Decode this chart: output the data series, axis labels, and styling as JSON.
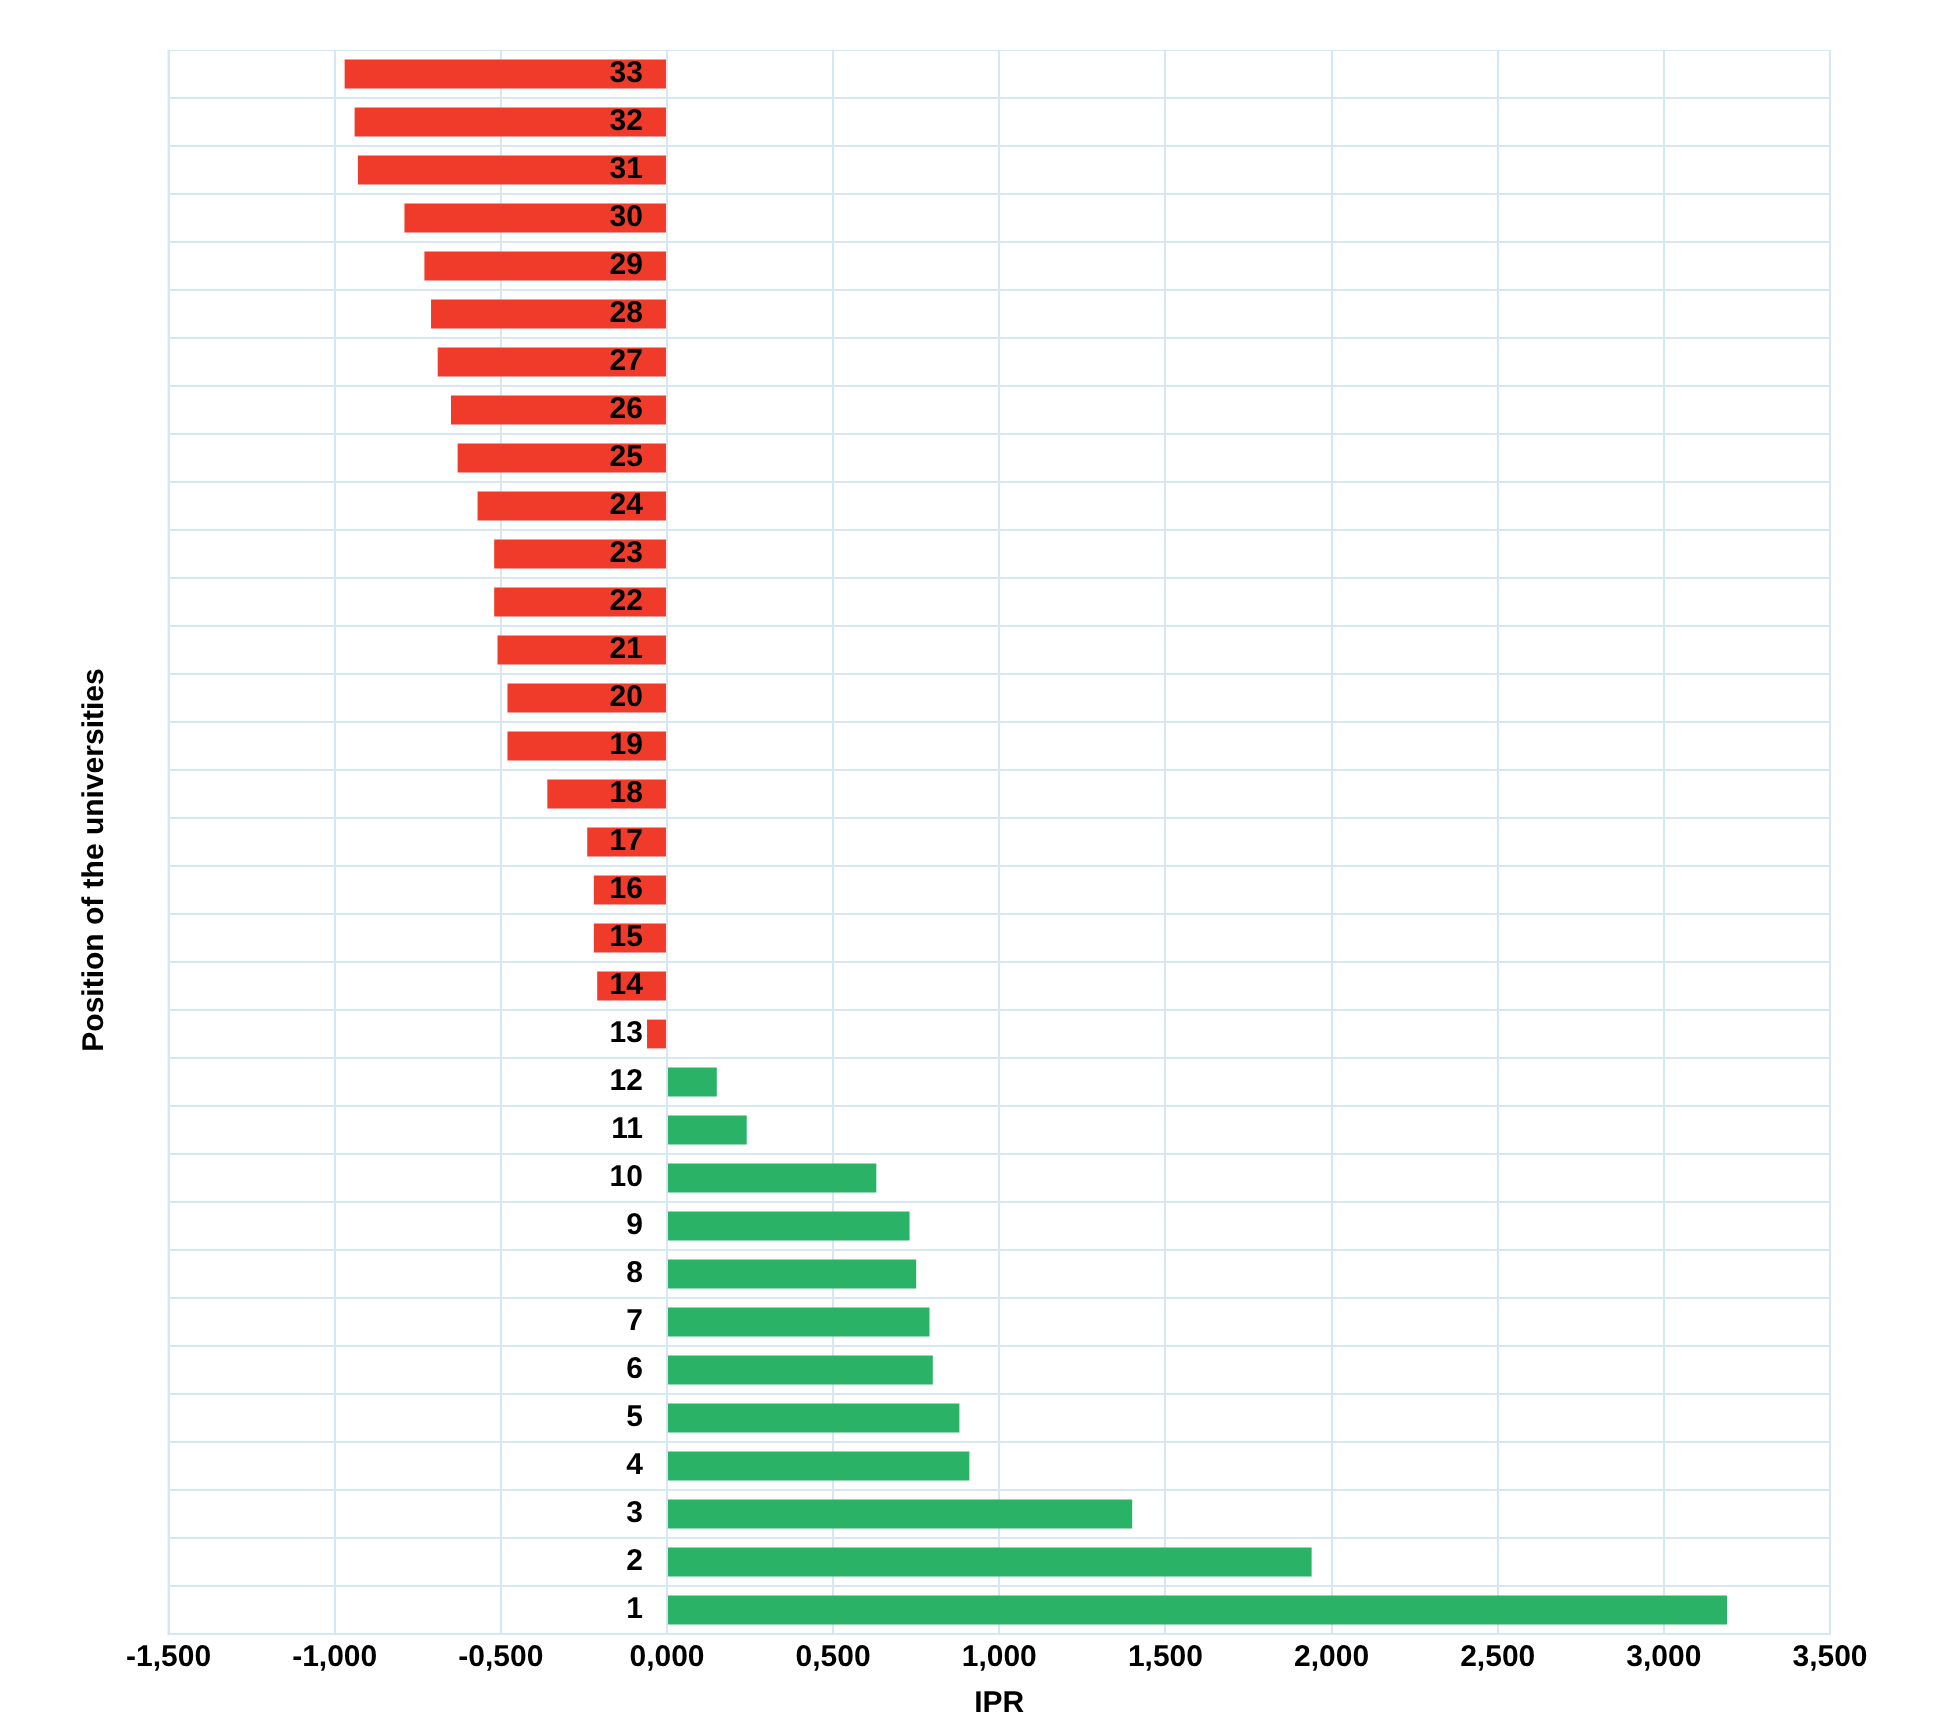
{
  "chart_data": {
    "type": "bar",
    "orientation": "horizontal",
    "xlabel": "IPR",
    "ylabel": "Position of the universities",
    "categories": [
      "33",
      "32",
      "31",
      "30",
      "29",
      "28",
      "27",
      "26",
      "25",
      "24",
      "23",
      "22",
      "21",
      "20",
      "19",
      "18",
      "17",
      "16",
      "15",
      "14",
      "13",
      "12",
      "11",
      "10",
      "9",
      "8",
      "7",
      "6",
      "5",
      "4",
      "3",
      "2",
      "1"
    ],
    "values": [
      -0.97,
      -0.94,
      -0.93,
      -0.79,
      -0.73,
      -0.71,
      -0.69,
      -0.65,
      -0.63,
      -0.57,
      -0.52,
      -0.52,
      -0.51,
      -0.48,
      -0.48,
      -0.36,
      -0.24,
      -0.22,
      -0.22,
      -0.21,
      -0.06,
      0.15,
      0.24,
      0.63,
      0.73,
      0.75,
      0.79,
      0.8,
      0.88,
      0.91,
      1.4,
      1.94,
      3.19
    ],
    "colors": [
      "#f03a2a",
      "#f03a2a",
      "#f03a2a",
      "#f03a2a",
      "#f03a2a",
      "#f03a2a",
      "#f03a2a",
      "#f03a2a",
      "#f03a2a",
      "#f03a2a",
      "#f03a2a",
      "#f03a2a",
      "#f03a2a",
      "#f03a2a",
      "#f03a2a",
      "#f03a2a",
      "#f03a2a",
      "#f03a2a",
      "#f03a2a",
      "#f03a2a",
      "#f03a2a",
      "#2ab366",
      "#2ab366",
      "#2ab366",
      "#2ab366",
      "#2ab366",
      "#2ab366",
      "#2ab366",
      "#2ab366",
      "#2ab366",
      "#2ab366",
      "#2ab366",
      "#2ab366"
    ],
    "xlim": [
      -1.5,
      3.5
    ],
    "xticks": [
      {
        "value": -1.5,
        "label": "-1,500"
      },
      {
        "value": -1,
        "label": "-1,000"
      },
      {
        "value": -0.5,
        "label": "-0,500"
      },
      {
        "value": 0,
        "label": "0,000"
      },
      {
        "value": 0.5,
        "label": "0,500"
      },
      {
        "value": 1,
        "label": "1,000"
      },
      {
        "value": 1.5,
        "label": "1,500"
      },
      {
        "value": 2,
        "label": "2,000"
      },
      {
        "value": 2.5,
        "label": "2,500"
      },
      {
        "value": 3,
        "label": "3,000"
      },
      {
        "value": 3.5,
        "label": "3,500"
      }
    ],
    "grid": true,
    "legend": false
  }
}
